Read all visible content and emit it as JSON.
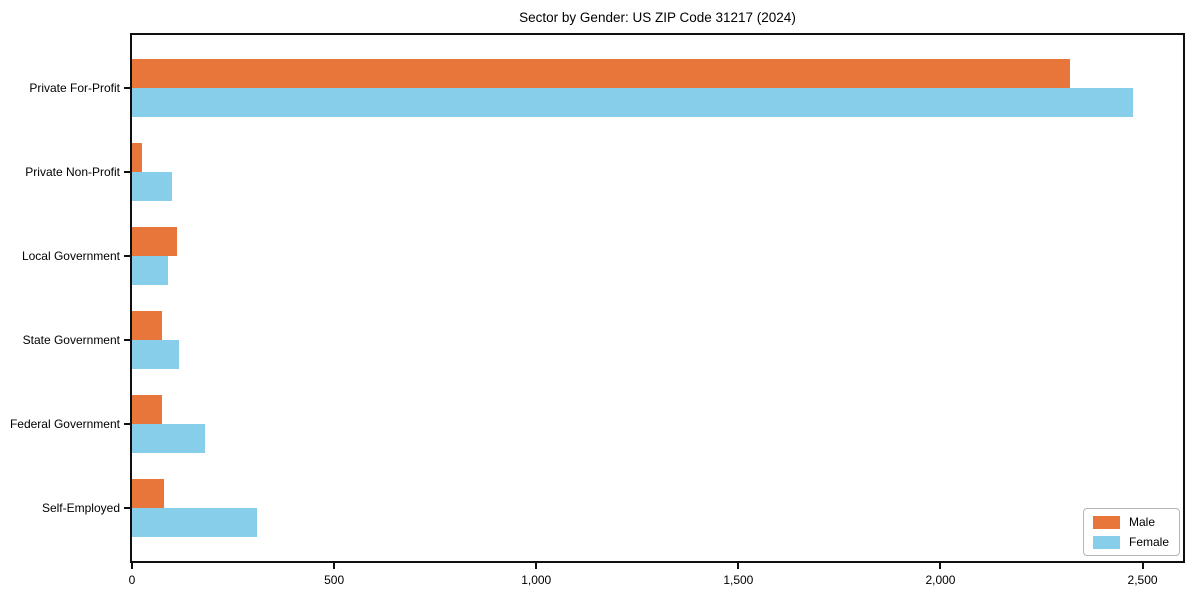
{
  "chart_data": {
    "type": "bar",
    "orientation": "horizontal",
    "title": "Sector by Gender: US ZIP Code 31217 (2024)",
    "categories": [
      "Private For-Profit",
      "Private Non-Profit",
      "Local Government",
      "State Government",
      "Federal Government",
      "Self-Employed"
    ],
    "series": [
      {
        "name": "Male",
        "color": "#e8763b",
        "values": [
          2320,
          25,
          110,
          75,
          75,
          80
        ]
      },
      {
        "name": "Female",
        "color": "#87ceeb",
        "values": [
          2475,
          100,
          90,
          115,
          180,
          310
        ]
      }
    ],
    "xlabel": "",
    "ylabel": "",
    "xlim": [
      0,
      2600
    ],
    "xticks": [
      0,
      500,
      1000,
      1500,
      2000,
      2500
    ],
    "xtick_labels": [
      "0",
      "500",
      "1,000",
      "1,500",
      "2,000",
      "2,500"
    ],
    "grid": false,
    "legend_position": "lower right",
    "colors": {
      "male": "#e8763b",
      "female": "#87ceeb",
      "axis": "#0f0f0f",
      "background": "#ffffff",
      "legend_border": "#b5b5b5"
    }
  }
}
